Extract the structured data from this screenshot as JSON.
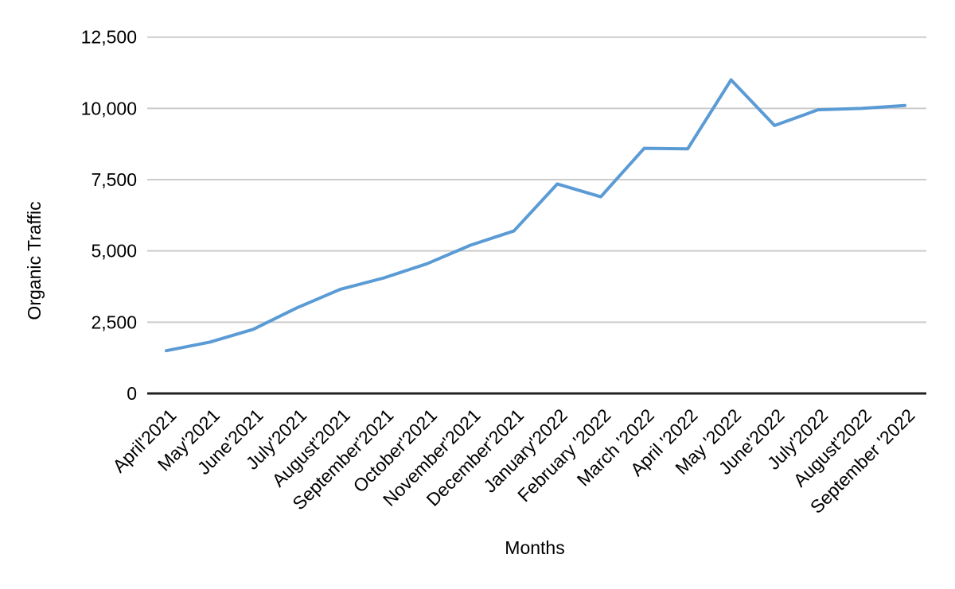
{
  "chart_data": {
    "type": "line",
    "title": "",
    "xlabel": "Months",
    "ylabel": "Organic Traffic",
    "categories": [
      "April'2021",
      "May'2021",
      "June'2021",
      "July'2021",
      "August'2021",
      "September'2021",
      "October'2021",
      "November'2021",
      "December'2021",
      "January'2022",
      "February '2022",
      "March '2022",
      "April '2022",
      "May '2022",
      "June'2022",
      "July'2022",
      "August'2022",
      "September '2022"
    ],
    "series": [
      {
        "name": "Organic Traffic",
        "color": "#5B9BD5",
        "values": [
          1500,
          1800,
          2250,
          3000,
          3650,
          4050,
          4550,
          5200,
          5700,
          7350,
          6900,
          8600,
          8580,
          11000,
          9400,
          9950,
          10000,
          10100
        ]
      }
    ],
    "ylim": [
      0,
      12500
    ],
    "ytick_interval": 2500,
    "ytick_labels": [
      "0",
      "2,500",
      "5,000",
      "7,500",
      "10,000",
      "12,500"
    ],
    "grid": true,
    "legend_position": "none",
    "background_color": "#ffffff",
    "gridline_color": "#cccccc",
    "axis_line_color": "#212121",
    "text_color": "#000000"
  }
}
